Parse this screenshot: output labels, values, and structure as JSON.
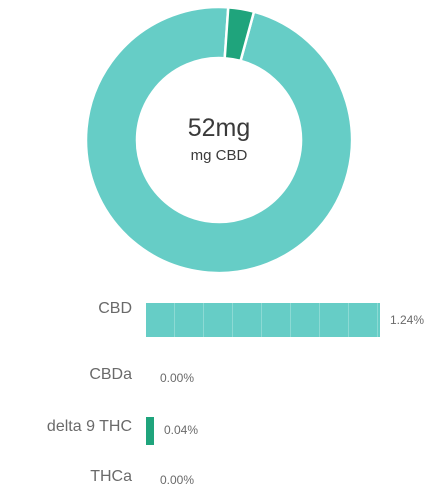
{
  "chart_data": [
    {
      "type": "pie",
      "style": "donut",
      "center_value": "52mg",
      "center_label": "mg CBD",
      "slices": [
        {
          "label": "CBD",
          "value": 1.24,
          "color": "#66cdc6"
        },
        {
          "label": "delta 9 THC",
          "value": 0.04,
          "color": "#1fa47c"
        }
      ],
      "gap_color": "#ffffff"
    },
    {
      "type": "bar",
      "orientation": "horizontal",
      "categories": [
        "CBD",
        "CBDa",
        "delta 9 THC",
        "THCa"
      ],
      "values": [
        1.24,
        0.0,
        0.04,
        0.0
      ],
      "value_labels": [
        "1.24%",
        "0.00%",
        "0.04%",
        "0.00%"
      ],
      "colors": [
        "#66cdc6",
        "#66cdc6",
        "#1fa47c",
        "#66cdc6"
      ],
      "xlim": [
        0,
        1.24
      ],
      "title": "",
      "xlabel": "",
      "ylabel": ""
    }
  ]
}
